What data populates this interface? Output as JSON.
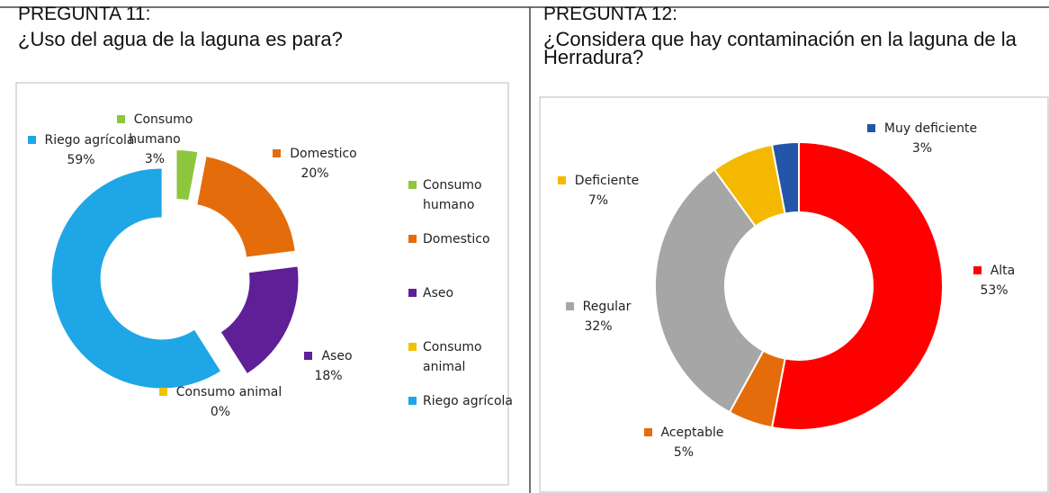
{
  "chart_data": [
    {
      "type": "donut",
      "title": "PREGUNTA 11:",
      "subtitle": "¿Uso del agua de la laguna es para?",
      "categories": [
        "Consumo humano",
        "Domestico",
        "Aseo",
        "Consumo animal",
        "Riego agrícola"
      ],
      "values": [
        3,
        20,
        18,
        0,
        59
      ],
      "value_labels": [
        "3%",
        "20%",
        "18%",
        "0%",
        "59%"
      ],
      "colors": [
        "#8dc63f",
        "#e46c0a",
        "#5f1f97",
        "#f2c200",
        "#1ea6e6"
      ],
      "explode": true,
      "legend": "right"
    },
    {
      "type": "donut",
      "title": "PREGUNTA 12:",
      "subtitle": "¿Considera que hay contaminación en la laguna de la Herradura?",
      "categories": [
        "Alta",
        "Aceptable",
        "Regular",
        "Deficiente",
        "Muy deficiente"
      ],
      "values": [
        53,
        5,
        32,
        7,
        3
      ],
      "value_labels": [
        "53%",
        "5%",
        "32%",
        "7%",
        "3%"
      ],
      "colors": [
        "#ff0000",
        "#e46c0a",
        "#a6a6a6",
        "#f5b800",
        "#2356a8"
      ],
      "explode": false,
      "legend": false
    }
  ]
}
